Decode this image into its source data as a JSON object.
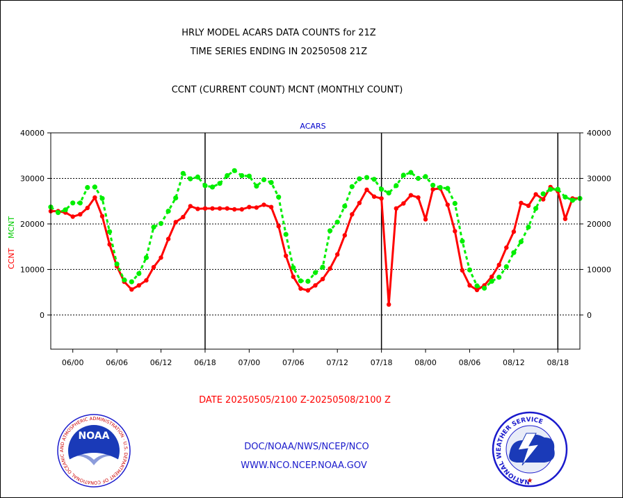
{
  "colors": {
    "ccnt": "#ff0000",
    "mcnt": "#00ee00",
    "title": "#000000",
    "ccnt_label": "#ff0000",
    "mcnt_label": "#00cc00",
    "plot_title": "#0000cc",
    "date_range": "#ff0000",
    "footer": "#1a1acc"
  },
  "titles": {
    "line1": "HRLY MODEL ACARS DATA COUNTS for 21Z",
    "line2": "TIME SERIES ENDING IN 20250508 21Z",
    "line3": "CCNT (CURRENT COUNT) MCNT (MONTHLY COUNT)"
  },
  "plot_title": "ACARS",
  "axis_labels": {
    "ccnt": "CCNT",
    "mcnt": "MCNT"
  },
  "date_range": "DATE 20250505/2100 Z-20250508/2100 Z",
  "footer": {
    "line1": "DOC/NOAA/NWS/NCEP/NCO",
    "line2": "WWW.NCO.NCEP.NOAA.GOV"
  },
  "logos": {
    "noaa_text": "NOAA",
    "noaa_ring": "NATIONAL OCEANIC AND ATMOSPHERIC ADMINISTRATION · U.S. DEPARTMENT OF COMMERCE ·",
    "nws_ring": "NATIONAL WEATHER SERVICE"
  },
  "chart_data": {
    "type": "line",
    "title": "ACARS",
    "x_tick_labels": [
      "06/00",
      "06/06",
      "06/12",
      "06/18",
      "07/00",
      "07/06",
      "07/12",
      "07/18",
      "08/00",
      "08/06",
      "08/12",
      "08/18"
    ],
    "x_tick_hours": [
      27,
      33,
      39,
      45,
      51,
      57,
      63,
      69,
      75,
      81,
      87,
      93
    ],
    "day_boundaries_hours": [
      45,
      69,
      93
    ],
    "x_range_hours": [
      24,
      96
    ],
    "ylim": [
      -7500,
      40000
    ],
    "y_ticks": [
      0,
      10000,
      20000,
      30000,
      40000
    ],
    "grid": "horizontal dotted",
    "series": [
      {
        "name": "CCNT",
        "values": [
          22800,
          22800,
          22500,
          21600,
          22100,
          23500,
          25800,
          21700,
          15500,
          10700,
          7300,
          5600,
          6500,
          7600,
          10500,
          12600,
          16700,
          20400,
          21500,
          23900,
          23300,
          23400,
          23400,
          23400,
          23400,
          23200,
          23200,
          23700,
          23600,
          24200,
          23700,
          19500,
          13000,
          8400,
          5800,
          5400,
          6500,
          7900,
          10200,
          13300,
          17500,
          22100,
          24600,
          27500,
          26000,
          25600,
          2300,
          23400,
          24500,
          26300,
          25800,
          21000,
          27600,
          27800,
          24200,
          18400,
          9800,
          6500,
          5500,
          6500,
          8400,
          11000,
          14800,
          18300,
          24600,
          24000,
          26500,
          25400,
          28100,
          27200,
          21100,
          25600,
          25600
        ]
      },
      {
        "name": "MCNT",
        "values": [
          23700,
          22500,
          23100,
          24600,
          24600,
          28000,
          28100,
          25600,
          18300,
          11200,
          7700,
          7300,
          9100,
          12600,
          19300,
          20100,
          22800,
          25700,
          31100,
          29900,
          30300,
          28400,
          28100,
          28900,
          30600,
          31700,
          30600,
          30500,
          28300,
          29700,
          29100,
          25900,
          17700,
          10400,
          7500,
          7400,
          9300,
          10500,
          18500,
          20400,
          23900,
          28200,
          29900,
          30200,
          29800,
          27600,
          26800,
          28400,
          30700,
          31300,
          30000,
          30400,
          28500,
          28000,
          27800,
          24500,
          16200,
          9900,
          6400,
          5900,
          7400,
          8300,
          10600,
          13700,
          16100,
          19300,
          23400,
          26600,
          27600,
          27600,
          25900,
          25200,
          25600
        ]
      }
    ]
  }
}
